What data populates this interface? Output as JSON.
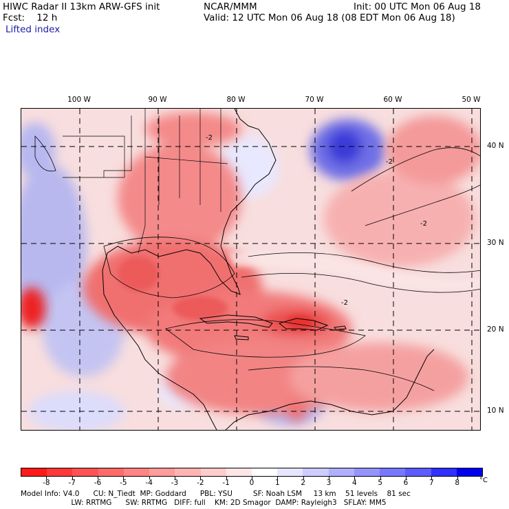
{
  "header": {
    "line1_left": "HIWC Radar II 13km ARW-GFS init",
    "line1_mid": "NCAR/MMM",
    "line1_right": "Init: 00 UTC Mon 06 Aug 18",
    "line2_left": "Fcst:    12 h",
    "line2_right": "Valid: 12 UTC Mon 06 Aug 18 (08 EDT Mon 06 Aug 18)",
    "field_name": "Lifted index"
  },
  "map": {
    "longitude_labels": [
      "100 W",
      "90 W",
      "80 W",
      "70 W",
      "60 W",
      "50 W"
    ],
    "latitude_labels": [
      "40 N",
      "30 N",
      "20 N",
      "10 N"
    ],
    "contour_label": "-2"
  },
  "colorbar": {
    "labels": [
      "-8",
      "-7",
      "-6",
      "-5",
      "-4",
      "-3",
      "-2",
      "-1",
      "0",
      "1",
      "2",
      "3",
      "4",
      "5",
      "6",
      "7",
      "8"
    ],
    "unit": "°C",
    "colors": [
      "#ff1a1a",
      "#ff3838",
      "#ff5252",
      "#ff6b6b",
      "#ff8484",
      "#ff9c9c",
      "#ffb4b4",
      "#ffcccc",
      "#ffe6e6",
      "#ffffff",
      "#e6e6ff",
      "#ccccff",
      "#b0b0ff",
      "#9494ff",
      "#7878ff",
      "#5c5cff",
      "#3030ff",
      "#0000ee"
    ]
  },
  "footer": {
    "line1": "Model Info: V4.0      CU: N_Tiedt  MP: Goddard      PBL: YSU         SF: Noah LSM     13 km    51 levels    81 sec",
    "line2": "                      LW: RRTMG      SW: RRTMG   DIFF: full    KM: 2D Smagor  DAMP: Rayleigh3   SFLAY: MM5"
  }
}
